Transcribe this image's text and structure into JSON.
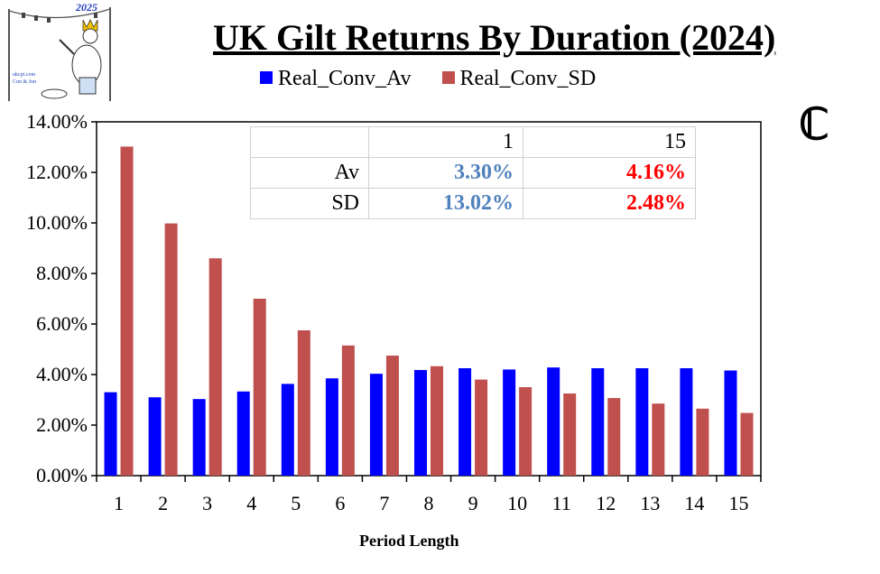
{
  "header": {
    "title": "UK Gilt Returns By Duration (2024)",
    "corner_mark": "ℂ",
    "logo_year": "2025",
    "logo_site": "ukcpi.com",
    "logo_author": "Con & Jon"
  },
  "legend": {
    "series_1": "Real_Conv_Av",
    "series_2": "Real_Conv_SD"
  },
  "stats_table": {
    "header": [
      "",
      "1",
      "15"
    ],
    "rows": [
      {
        "label": "Av",
        "v1": "3.30%",
        "v15": "4.16%"
      },
      {
        "label": "SD",
        "v1": "13.02%",
        "v15": "2.48%"
      }
    ]
  },
  "colors": {
    "av": "#0000ff",
    "sd": "#c0504d",
    "stat_blue": "#4f81bd",
    "stat_red": "#ff0000"
  },
  "chart_data": {
    "type": "bar",
    "title": "UK Gilt Returns By Duration (2024)",
    "xlabel": "Period Length",
    "ylabel": "",
    "categories": [
      "1",
      "2",
      "3",
      "4",
      "5",
      "6",
      "7",
      "8",
      "9",
      "10",
      "11",
      "12",
      "13",
      "14",
      "15"
    ],
    "series": [
      {
        "name": "Real_Conv_Av",
        "values": [
          3.3,
          3.1,
          3.03,
          3.33,
          3.63,
          3.85,
          4.03,
          4.18,
          4.25,
          4.2,
          4.28,
          4.25,
          4.25,
          4.25,
          4.16
        ]
      },
      {
        "name": "Real_Conv_SD",
        "values": [
          13.02,
          9.98,
          8.6,
          7.0,
          5.75,
          5.15,
          4.75,
          4.33,
          3.8,
          3.5,
          3.25,
          3.07,
          2.85,
          2.65,
          2.48
        ]
      }
    ],
    "ylim": [
      0,
      14
    ],
    "yticks": [
      "0.00%",
      "2.00%",
      "4.00%",
      "6.00%",
      "8.00%",
      "10.00%",
      "12.00%",
      "14.00%"
    ],
    "grid": false,
    "legend_position": "top"
  }
}
